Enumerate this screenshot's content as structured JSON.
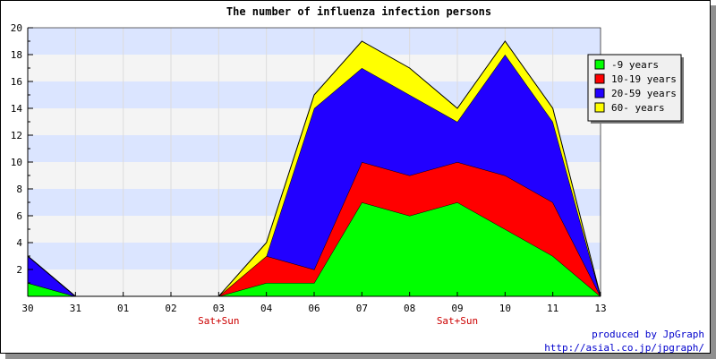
{
  "chart_data": {
    "type": "area",
    "stacked": true,
    "title": "The number of influenza infection persons",
    "categories": [
      "30",
      "31",
      "01",
      "02",
      "03",
      "04",
      "06",
      "07",
      "08",
      "09",
      "10",
      "11",
      "13"
    ],
    "weekend_labels": {
      "03": "Sat+Sun",
      "09": "Sat+Sun"
    },
    "ylim": [
      0,
      20
    ],
    "y_ticks": [
      2,
      4,
      6,
      8,
      10,
      12,
      14,
      16,
      18,
      20
    ],
    "series": [
      {
        "name": "-9 years",
        "color": "#00ff00",
        "values": [
          1,
          0,
          0,
          0,
          0,
          1,
          1,
          7,
          6,
          7,
          5,
          3,
          0
        ]
      },
      {
        "name": "10-19 years",
        "color": "#ff0000",
        "values": [
          0,
          0,
          0,
          0,
          0,
          2,
          1,
          3,
          3,
          3,
          4,
          4,
          0
        ]
      },
      {
        "name": "20-59 years",
        "color": "#2200ff",
        "values": [
          2,
          0,
          0,
          0,
          0,
          0,
          12,
          7,
          6,
          3,
          9,
          6,
          0
        ]
      },
      {
        "name": "60- years",
        "color": "#ffff00",
        "values": [
          0,
          0,
          0,
          0,
          0,
          1,
          1,
          2,
          2,
          1,
          1,
          1,
          0
        ]
      }
    ],
    "legend_position": "right",
    "band_colors": [
      "#f4f4f4",
      "#dbe5ff"
    ],
    "grid": true
  },
  "credits": {
    "line1": "produced by JpGraph",
    "line2": "http://asial.co.jp/jpgraph/"
  }
}
